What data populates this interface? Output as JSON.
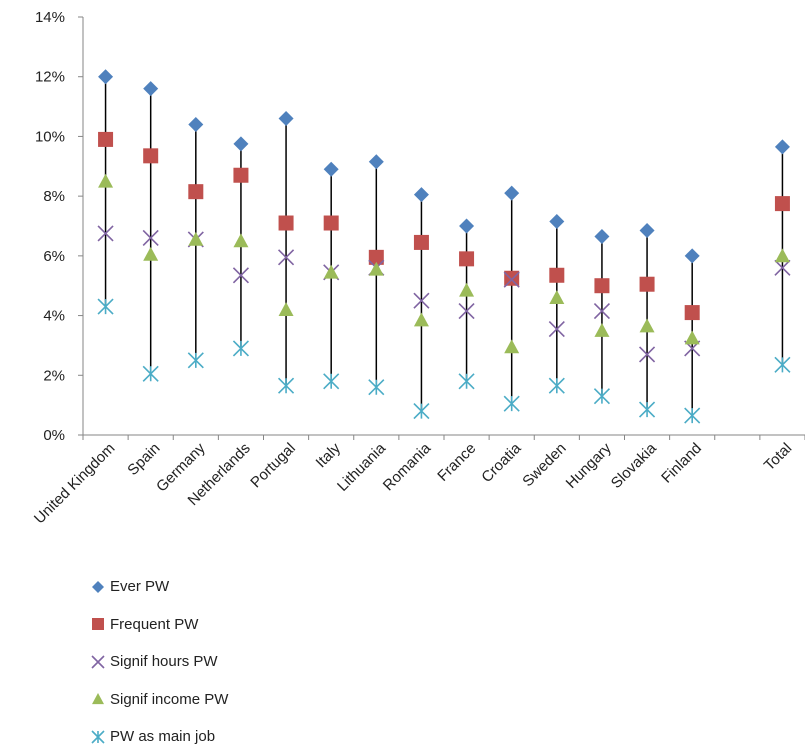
{
  "chart_data": {
    "type": "scatter",
    "categories": [
      "United Kingdom",
      "Spain",
      "Germany",
      "Netherlands",
      "Portugal",
      "Italy",
      "Lithuania",
      "Romania",
      "France",
      "Croatia",
      "Sweden",
      "Hungary",
      "Slovakia",
      "Finland",
      "",
      "Total"
    ],
    "series": [
      {
        "name": "Ever PW",
        "marker": "diamond",
        "color": "#4F81BD",
        "values": [
          12.0,
          11.6,
          10.4,
          9.75,
          10.6,
          8.9,
          9.15,
          8.05,
          7.0,
          8.1,
          7.15,
          6.65,
          6.85,
          6.0,
          null,
          9.65
        ]
      },
      {
        "name": "Frequent PW",
        "marker": "square",
        "color": "#C0504D",
        "values": [
          9.9,
          9.35,
          8.15,
          8.7,
          7.1,
          7.1,
          5.95,
          6.45,
          5.9,
          5.25,
          5.35,
          5.0,
          5.05,
          4.1,
          null,
          7.75
        ]
      },
      {
        "name": "Signif hours PW",
        "marker": "x",
        "color": "#8064A2",
        "values": [
          6.75,
          6.6,
          6.55,
          5.35,
          5.95,
          5.45,
          5.6,
          4.5,
          4.15,
          5.2,
          3.55,
          4.15,
          2.7,
          2.9,
          null,
          5.6
        ]
      },
      {
        "name": "Signif income PW",
        "marker": "triangle",
        "color": "#9BBB59",
        "values": [
          8.5,
          6.05,
          6.55,
          6.5,
          4.2,
          5.45,
          5.55,
          3.85,
          4.85,
          2.95,
          4.6,
          3.5,
          3.65,
          3.25,
          null,
          6.0
        ]
      },
      {
        "name": "PW as main job",
        "marker": "star",
        "color": "#4BACC6",
        "values": [
          4.3,
          2.05,
          2.5,
          2.9,
          1.65,
          1.8,
          1.6,
          0.8,
          1.8,
          1.05,
          1.65,
          1.3,
          0.85,
          0.65,
          null,
          2.35
        ]
      }
    ],
    "ylim": [
      0,
      14
    ],
    "yticks": [
      "0%",
      "2%",
      "4%",
      "6%",
      "8%",
      "10%",
      "12%",
      "14%"
    ],
    "grid": false,
    "legend_position": "bottom",
    "xlabel": "",
    "ylabel": "",
    "title": ""
  }
}
